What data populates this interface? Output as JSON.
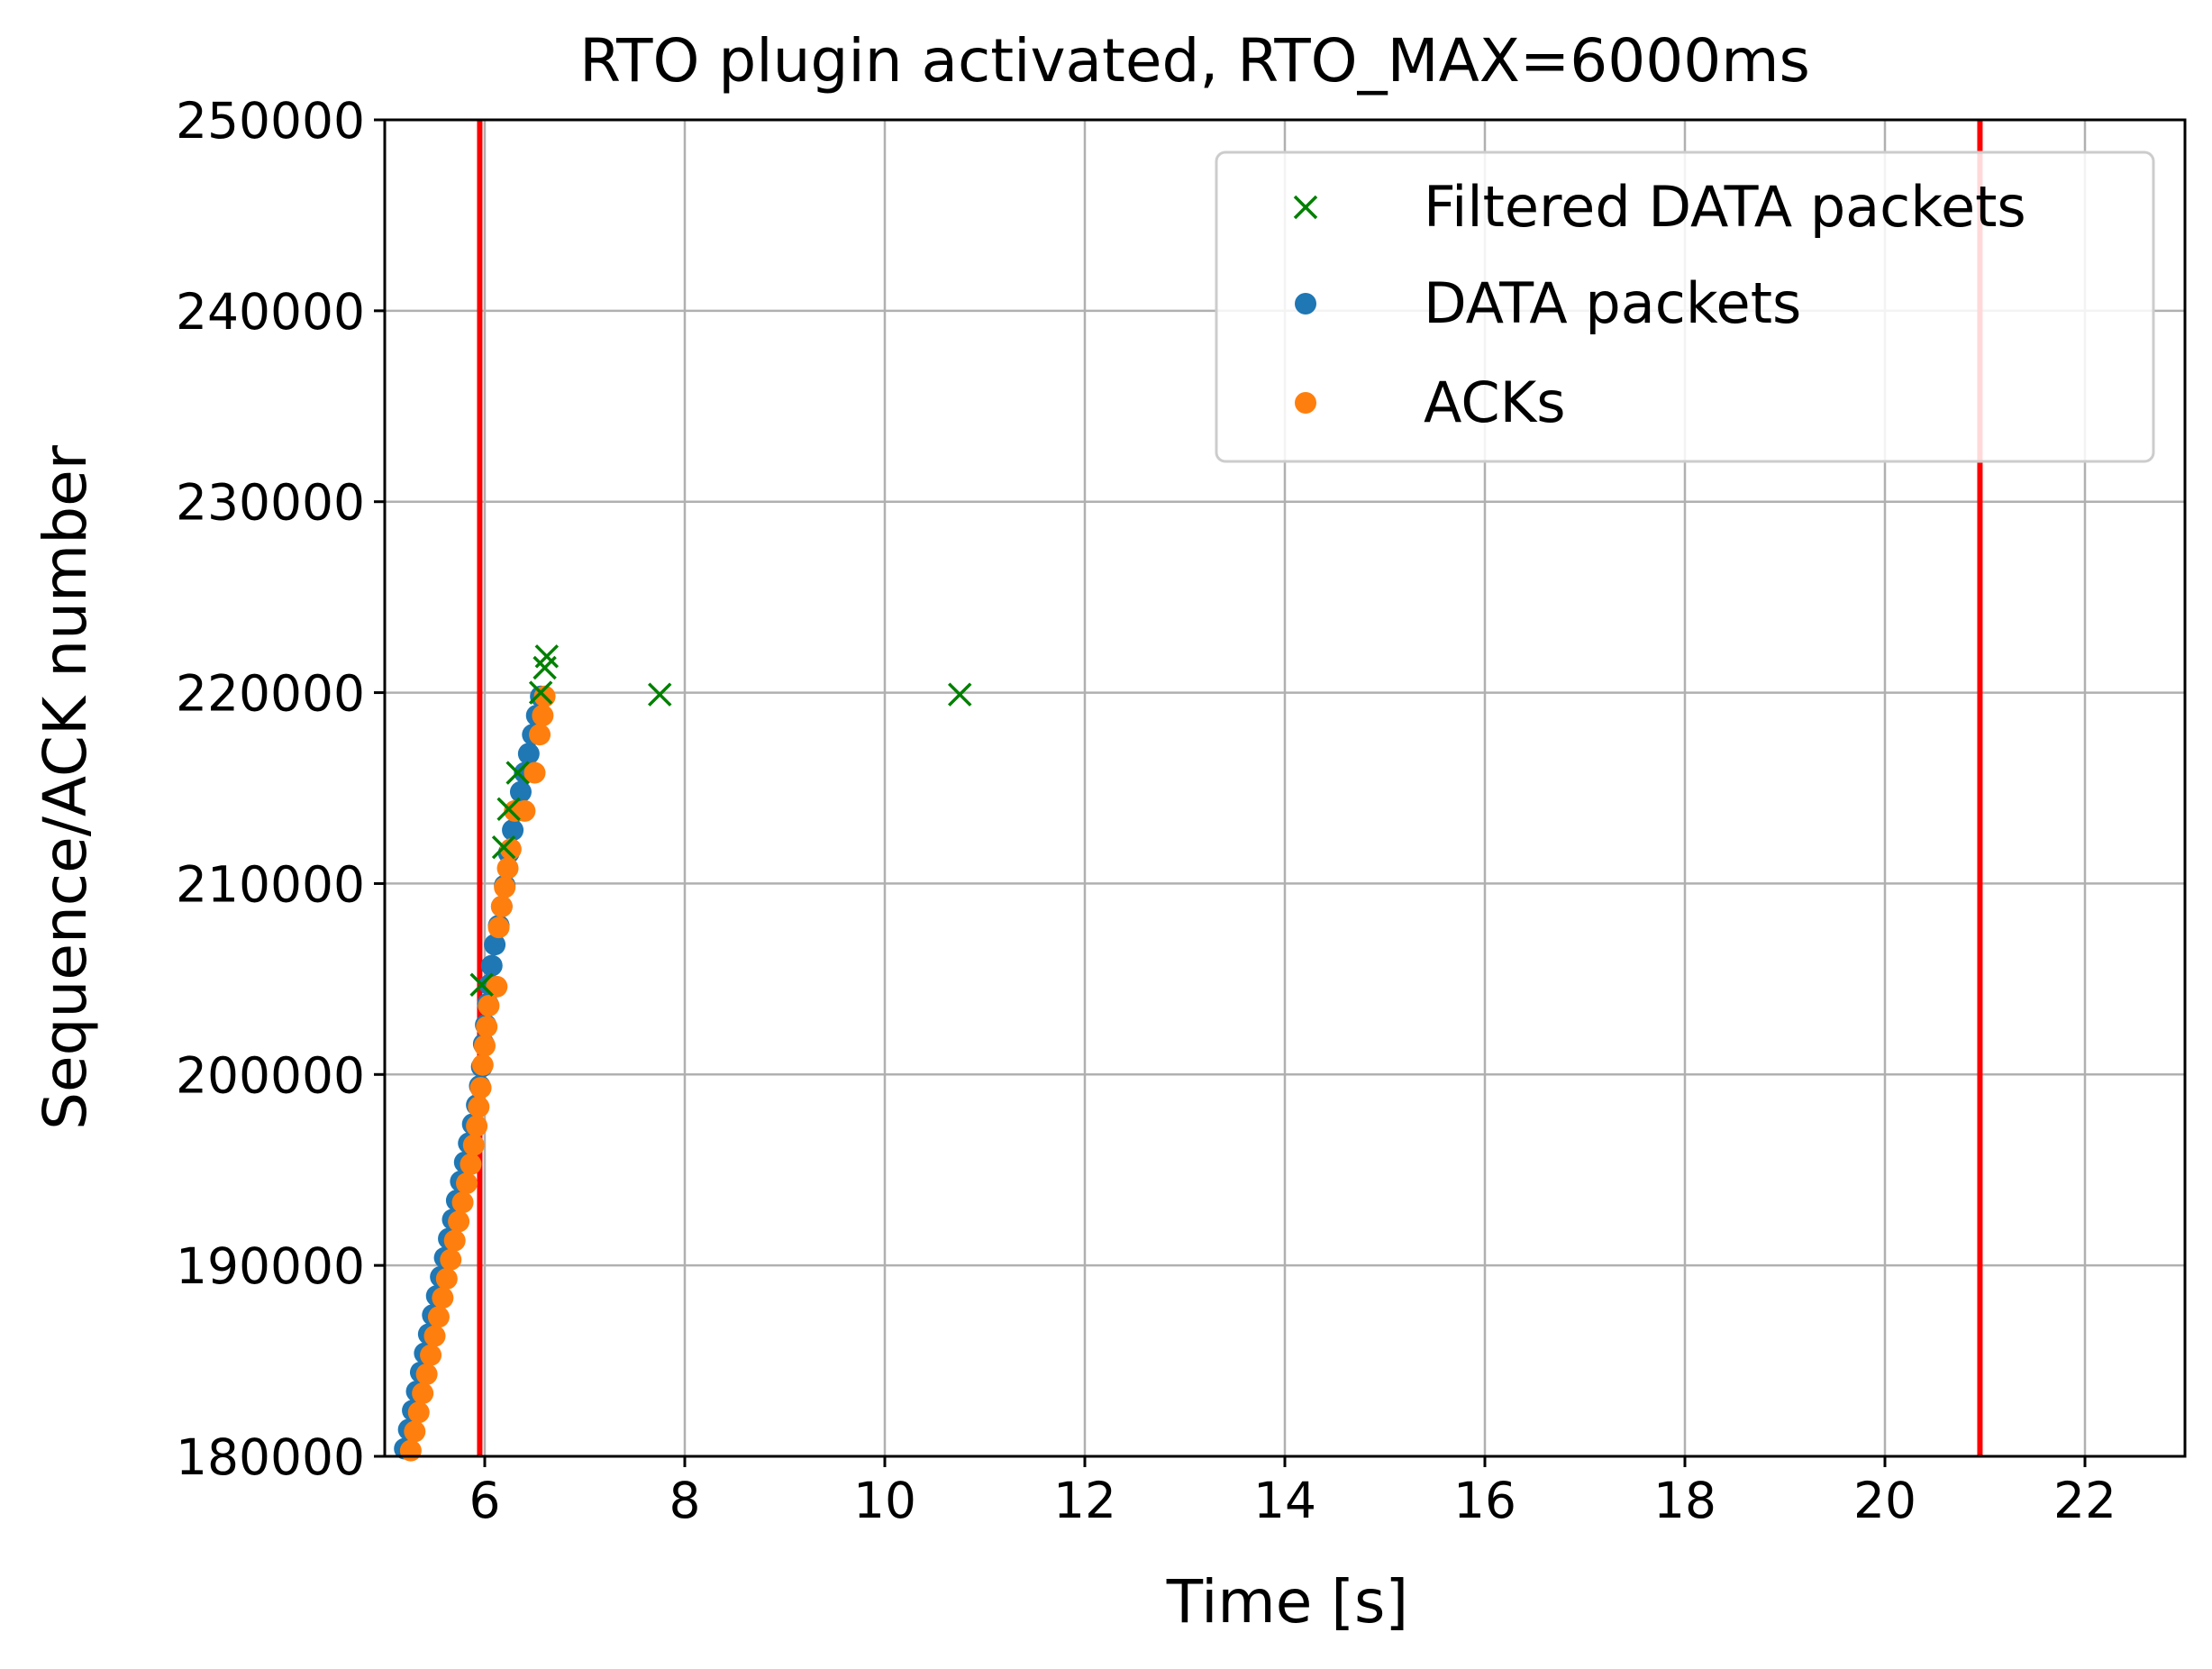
{
  "chart_data": {
    "type": "scatter",
    "title": "RTO plugin activated, RTO_MAX=6000ms",
    "xlabel": "Time [s]",
    "ylabel": "Sequence/ACK number",
    "xlim": [
      5.0,
      23.0
    ],
    "ylim": [
      180000,
      250000
    ],
    "xticks": [
      6,
      8,
      10,
      12,
      14,
      16,
      18,
      20,
      22
    ],
    "xtick_labels": [
      "6",
      "8",
      "10",
      "12",
      "14",
      "16",
      "18",
      "20",
      "22"
    ],
    "yticks": [
      180000,
      190000,
      200000,
      210000,
      220000,
      230000,
      240000,
      250000
    ],
    "ytick_labels": [
      "180000",
      "190000",
      "200000",
      "210000",
      "220000",
      "230000",
      "240000",
      "250000"
    ],
    "grid": true,
    "legend_position": "upper right",
    "legend": [
      {
        "label": "Filtered DATA packets",
        "marker": "x",
        "color": "#008000"
      },
      {
        "label": "DATA packets",
        "marker": "dot",
        "color": "#1f77b4"
      },
      {
        "label": "ACKs",
        "marker": "dot",
        "color": "#ff7f0e"
      }
    ],
    "vlines": {
      "color": "#ff0000",
      "x": [
        5.95,
        20.95
      ]
    },
    "series": [
      {
        "name": "DATA packets",
        "marker": "dot",
        "color": "#1f77b4",
        "points": [
          [
            5.2,
            180400
          ],
          [
            5.24,
            181400
          ],
          [
            5.28,
            182400
          ],
          [
            5.32,
            183400
          ],
          [
            5.36,
            184400
          ],
          [
            5.4,
            185400
          ],
          [
            5.44,
            186400
          ],
          [
            5.48,
            187400
          ],
          [
            5.52,
            188400
          ],
          [
            5.56,
            189400
          ],
          [
            5.6,
            190400
          ],
          [
            5.64,
            191400
          ],
          [
            5.68,
            192400
          ],
          [
            5.72,
            193400
          ],
          [
            5.76,
            194400
          ],
          [
            5.8,
            195400
          ],
          [
            5.84,
            196400
          ],
          [
            5.88,
            197400
          ],
          [
            5.92,
            198400
          ],
          [
            5.95,
            199400
          ],
          [
            5.97,
            200400
          ],
          [
            5.99,
            201600
          ],
          [
            6.01,
            202600
          ],
          [
            6.03,
            203700
          ],
          [
            6.05,
            204700
          ],
          [
            6.07,
            205700
          ],
          [
            6.1,
            206800
          ],
          [
            6.14,
            207800
          ],
          [
            6.17,
            208800
          ],
          [
            6.2,
            209900
          ],
          [
            6.24,
            211600
          ],
          [
            6.28,
            212800
          ],
          [
            6.32,
            213800
          ],
          [
            6.36,
            214800
          ],
          [
            6.4,
            215800
          ],
          [
            6.44,
            216800
          ],
          [
            6.48,
            217800
          ],
          [
            6.52,
            218800
          ],
          [
            6.56,
            219800
          ]
        ]
      },
      {
        "name": "ACKs",
        "marker": "dot",
        "color": "#ff7f0e",
        "points": [
          [
            5.26,
            180300
          ],
          [
            5.3,
            181300
          ],
          [
            5.34,
            182300
          ],
          [
            5.38,
            183300
          ],
          [
            5.42,
            184300
          ],
          [
            5.46,
            185300
          ],
          [
            5.5,
            186300
          ],
          [
            5.54,
            187300
          ],
          [
            5.58,
            188300
          ],
          [
            5.62,
            189300
          ],
          [
            5.66,
            190300
          ],
          [
            5.7,
            191300
          ],
          [
            5.74,
            192300
          ],
          [
            5.78,
            193300
          ],
          [
            5.82,
            194300
          ],
          [
            5.86,
            195300
          ],
          [
            5.89,
            196300
          ],
          [
            5.92,
            197300
          ],
          [
            5.94,
            198300
          ],
          [
            5.96,
            199300
          ],
          [
            5.98,
            200500
          ],
          [
            6.0,
            201500
          ],
          [
            6.02,
            202500
          ],
          [
            6.04,
            203600
          ],
          [
            6.12,
            204600
          ],
          [
            6.14,
            207700
          ],
          [
            6.17,
            208800
          ],
          [
            6.2,
            209800
          ],
          [
            6.23,
            210800
          ],
          [
            6.26,
            211800
          ],
          [
            6.3,
            213800
          ],
          [
            6.4,
            213800
          ],
          [
            6.5,
            215800
          ],
          [
            6.55,
            217800
          ],
          [
            6.58,
            218800
          ],
          [
            6.6,
            219800
          ]
        ]
      },
      {
        "name": "Filtered DATA packets",
        "marker": "x",
        "color": "#008000",
        "points": [
          [
            5.97,
            204700
          ],
          [
            6.19,
            211900
          ],
          [
            6.24,
            213900
          ],
          [
            6.33,
            215800
          ],
          [
            6.56,
            220000
          ],
          [
            6.6,
            221300
          ],
          [
            6.62,
            221900
          ],
          [
            7.75,
            219900
          ],
          [
            10.75,
            219900
          ]
        ]
      }
    ]
  }
}
